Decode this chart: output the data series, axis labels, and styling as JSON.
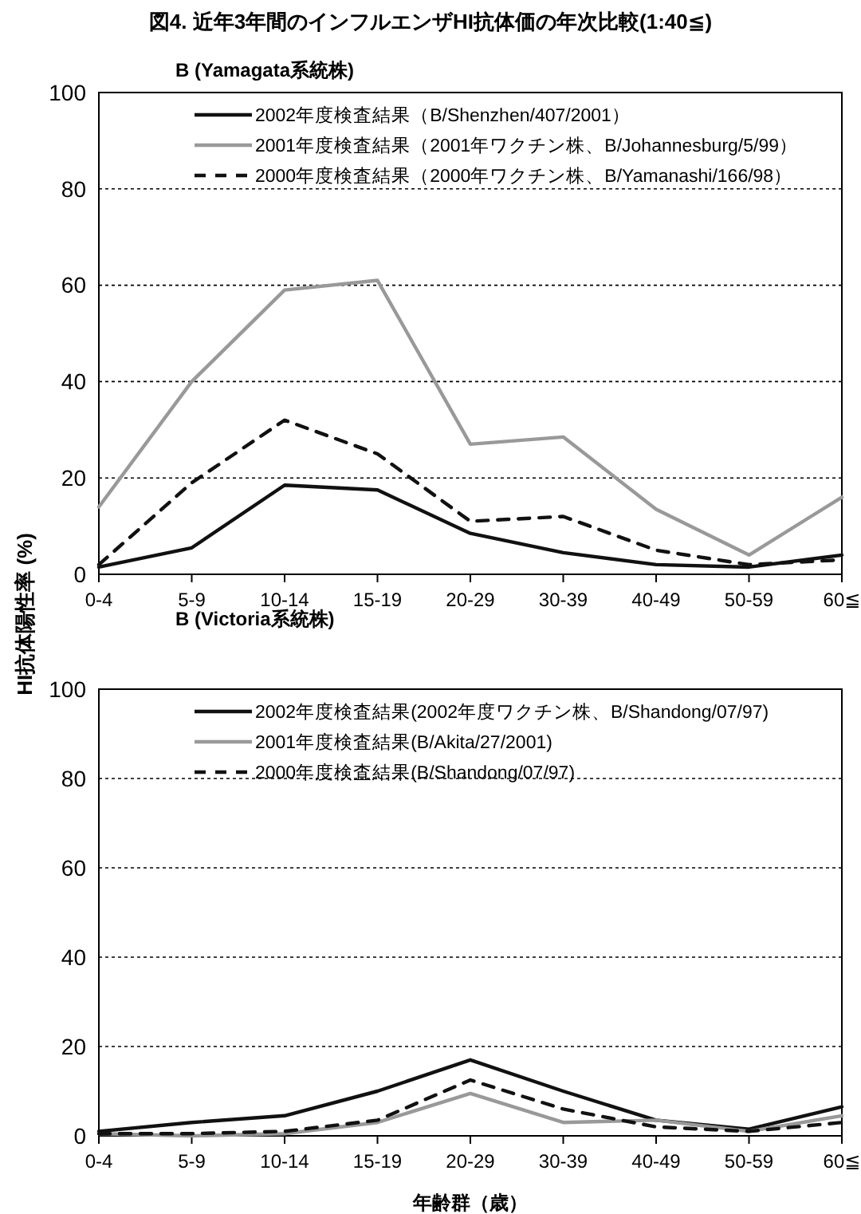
{
  "chart_data": [
    {
      "type": "line",
      "title": "図4.  近年3年間のインフルエンザHI抗体価の年次比較(1:40≦)",
      "subtitle": "B (Yamagata系統株)",
      "ylabel": "HI抗体陽性率 (%)",
      "categories": [
        "0-4",
        "5-9",
        "10-14",
        "15-19",
        "20-29",
        "30-39",
        "40-49",
        "50-59",
        "60≦"
      ],
      "ylim": [
        0,
        100
      ],
      "yticks": [
        0,
        20,
        40,
        60,
        80,
        100
      ],
      "grid": "y",
      "legend": "top left",
      "marker": "none",
      "series": [
        {
          "name": "2002年度検査結果（B/Shenzhen/407/2001）",
          "color": "#111111",
          "line_style": "solid",
          "values": [
            1.5,
            5.5,
            18.5,
            17.5,
            8.5,
            4.5,
            2,
            1.5,
            4
          ]
        },
        {
          "name": "2001年度検査結果（2001年ワクチン株、B/Johannesburg/5/99）",
          "color": "#999999",
          "line_style": "solid",
          "values": [
            14,
            40,
            59,
            61,
            27,
            28.5,
            13.5,
            4,
            16
          ]
        },
        {
          "name": "2000年度検査結果（2000年ワクチン株、B/Yamanashi/166/98）",
          "color": "#111111",
          "line_style": "dashed",
          "values": [
            2,
            19,
            32,
            25,
            11,
            12,
            5,
            2,
            3
          ]
        }
      ]
    },
    {
      "type": "line",
      "title": "B (Victoria系統株)",
      "xlabel": "年齢群（歳）",
      "categories": [
        "0-4",
        "5-9",
        "10-14",
        "15-19",
        "20-29",
        "30-39",
        "40-49",
        "50-59",
        "60≦"
      ],
      "ylim": [
        0,
        100
      ],
      "yticks": [
        0,
        20,
        40,
        60,
        80,
        100
      ],
      "grid": "y",
      "legend": "top left",
      "marker": "none",
      "series": [
        {
          "name": "2002年度検査結果(2002年度ワクチン株、B/Shandong/07/97)",
          "color": "#111111",
          "line_style": "solid",
          "values": [
            1,
            3,
            4.5,
            10,
            17,
            10,
            3.5,
            1.5,
            6.5
          ]
        },
        {
          "name": "2001年度検査結果(B/Akita/27/2001)",
          "color": "#999999",
          "line_style": "solid",
          "values": [
            0.5,
            0,
            0.5,
            3,
            9.5,
            3,
            3.5,
            1,
            4.5
          ]
        },
        {
          "name": "2000年度検査結果(B/Shandong/07/97)",
          "color": "#111111",
          "line_style": "dashed",
          "values": [
            0.5,
            0.5,
            1,
            3.5,
            12.5,
            6,
            2,
            1,
            3
          ]
        }
      ]
    }
  ]
}
